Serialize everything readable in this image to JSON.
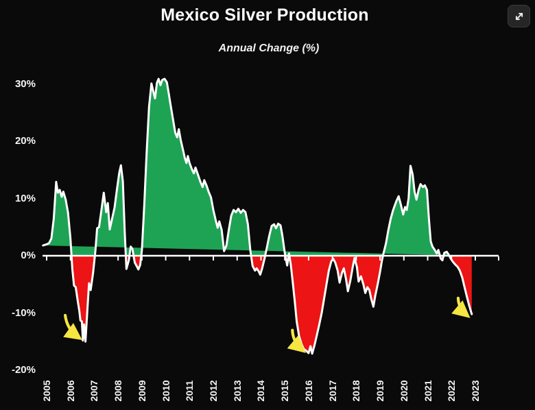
{
  "page": {
    "expand_button": {
      "icon": "expand-diagonal-arrows-icon"
    }
  },
  "chart_data": {
    "type": "area",
    "title": "Mexico Silver Production",
    "subtitle": "Annual Change (%)",
    "xlabel": "",
    "ylabel": "Annual Change (%)",
    "grid": false,
    "legend": "none",
    "background": "#0a0a0a",
    "ylim": [
      -22,
      32.5
    ],
    "xlim": [
      2004.85,
      2023.98
    ],
    "y_ticks": [
      "30%",
      "20%",
      "10%",
      "0%",
      "-10%",
      "-20%"
    ],
    "y_tick_values": [
      30,
      20,
      10,
      0,
      -10,
      -20
    ],
    "x_ticks": [
      "2005",
      "2006",
      "2007",
      "2008",
      "2009",
      "2010",
      "2011",
      "2012",
      "2013",
      "2014",
      "2015",
      "2016",
      "2017",
      "2018",
      "2019",
      "2020",
      "2021",
      "2022",
      "2023"
    ],
    "colors": {
      "positive_fill": "#1ea355",
      "negative_fill": "#ec1414",
      "line": "#ffffff",
      "axis": "#ffffff",
      "arrow": "#f5e642",
      "text": "#f5f5f5"
    },
    "series": [
      {
        "name": "Annual Change (%)",
        "points": [
          [
            2004.85,
            1.8
          ],
          [
            2005.0,
            2.0
          ],
          [
            2005.1,
            2.2
          ],
          [
            2005.2,
            3.0
          ],
          [
            2005.3,
            6.5
          ],
          [
            2005.4,
            12.9
          ],
          [
            2005.47,
            11.0
          ],
          [
            2005.55,
            11.5
          ],
          [
            2005.63,
            10.3
          ],
          [
            2005.7,
            11.2
          ],
          [
            2005.8,
            9.8
          ],
          [
            2005.9,
            7.5
          ],
          [
            2006.0,
            3.0
          ],
          [
            2006.08,
            -2.4
          ],
          [
            2006.15,
            -5.2
          ],
          [
            2006.22,
            -5.5
          ],
          [
            2006.3,
            -7.7
          ],
          [
            2006.37,
            -9.6
          ],
          [
            2006.42,
            -11.3
          ],
          [
            2006.48,
            -11.5
          ],
          [
            2006.52,
            -14.8
          ],
          [
            2006.57,
            -12.0
          ],
          [
            2006.63,
            -15.0
          ],
          [
            2006.7,
            -10.2
          ],
          [
            2006.78,
            -4.8
          ],
          [
            2006.85,
            -6.0
          ],
          [
            2006.95,
            -3.0
          ],
          [
            2007.05,
            1.0
          ],
          [
            2007.12,
            4.8
          ],
          [
            2007.2,
            5.0
          ],
          [
            2007.3,
            8.0
          ],
          [
            2007.4,
            11.0
          ],
          [
            2007.5,
            7.6
          ],
          [
            2007.57,
            9.2
          ],
          [
            2007.65,
            4.6
          ],
          [
            2007.75,
            6.5
          ],
          [
            2007.85,
            8.4
          ],
          [
            2007.95,
            11.5
          ],
          [
            2008.05,
            14.5
          ],
          [
            2008.12,
            15.8
          ],
          [
            2008.2,
            13.0
          ],
          [
            2008.28,
            4.0
          ],
          [
            2008.35,
            -2.3
          ],
          [
            2008.45,
            -0.8
          ],
          [
            2008.53,
            1.6
          ],
          [
            2008.6,
            1.2
          ],
          [
            2008.7,
            -1.2
          ],
          [
            2008.78,
            -1.8
          ],
          [
            2008.85,
            -2.4
          ],
          [
            2008.93,
            -1.6
          ],
          [
            2009.0,
            1.0
          ],
          [
            2009.1,
            9.0
          ],
          [
            2009.2,
            18.0
          ],
          [
            2009.3,
            26.0
          ],
          [
            2009.4,
            30.1
          ],
          [
            2009.48,
            28.7
          ],
          [
            2009.55,
            27.5
          ],
          [
            2009.63,
            30.2
          ],
          [
            2009.7,
            30.9
          ],
          [
            2009.78,
            29.8
          ],
          [
            2009.85,
            30.7
          ],
          [
            2009.95,
            30.9
          ],
          [
            2010.05,
            30.3
          ],
          [
            2010.12,
            28.5
          ],
          [
            2010.2,
            26.5
          ],
          [
            2010.3,
            24.0
          ],
          [
            2010.4,
            21.5
          ],
          [
            2010.48,
            20.7
          ],
          [
            2010.55,
            22.1
          ],
          [
            2010.63,
            20.2
          ],
          [
            2010.72,
            18.6
          ],
          [
            2010.8,
            17.1
          ],
          [
            2010.87,
            16.2
          ],
          [
            2010.93,
            17.4
          ],
          [
            2011.0,
            16.2
          ],
          [
            2011.1,
            15.1
          ],
          [
            2011.18,
            14.4
          ],
          [
            2011.25,
            15.4
          ],
          [
            2011.35,
            14.2
          ],
          [
            2011.45,
            13.0
          ],
          [
            2011.55,
            12.0
          ],
          [
            2011.62,
            13.2
          ],
          [
            2011.72,
            12.2
          ],
          [
            2011.8,
            11.2
          ],
          [
            2011.9,
            10.2
          ],
          [
            2012.0,
            8.0
          ],
          [
            2012.1,
            6.2
          ],
          [
            2012.18,
            4.9
          ],
          [
            2012.25,
            6.0
          ],
          [
            2012.35,
            4.5
          ],
          [
            2012.45,
            0.8
          ],
          [
            2012.55,
            1.8
          ],
          [
            2012.65,
            4.5
          ],
          [
            2012.75,
            7.0
          ],
          [
            2012.85,
            8.0
          ],
          [
            2012.95,
            7.6
          ],
          [
            2013.05,
            8.2
          ],
          [
            2013.15,
            7.5
          ],
          [
            2013.25,
            8.0
          ],
          [
            2013.35,
            7.6
          ],
          [
            2013.45,
            5.5
          ],
          [
            2013.55,
            1.0
          ],
          [
            2013.65,
            -1.8
          ],
          [
            2013.75,
            -2.6
          ],
          [
            2013.82,
            -2.2
          ],
          [
            2013.9,
            -2.7
          ],
          [
            2013.97,
            -3.3
          ],
          [
            2014.05,
            -2.2
          ],
          [
            2014.15,
            -0.5
          ],
          [
            2014.25,
            1.5
          ],
          [
            2014.35,
            3.5
          ],
          [
            2014.45,
            5.2
          ],
          [
            2014.55,
            5.5
          ],
          [
            2014.63,
            4.8
          ],
          [
            2014.72,
            5.6
          ],
          [
            2014.82,
            5.3
          ],
          [
            2014.9,
            3.5
          ],
          [
            2015.0,
            0.5
          ],
          [
            2015.1,
            -1.7
          ],
          [
            2015.18,
            0.4
          ],
          [
            2015.25,
            -1.5
          ],
          [
            2015.33,
            -4.5
          ],
          [
            2015.42,
            -8.0
          ],
          [
            2015.5,
            -11.5
          ],
          [
            2015.6,
            -14.0
          ],
          [
            2015.7,
            -15.4
          ],
          [
            2015.8,
            -16.3
          ],
          [
            2015.9,
            -16.6
          ],
          [
            2016.0,
            -17.0
          ],
          [
            2016.08,
            -15.8
          ],
          [
            2016.15,
            -17.1
          ],
          [
            2016.25,
            -15.6
          ],
          [
            2016.35,
            -13.8
          ],
          [
            2016.45,
            -12.0
          ],
          [
            2016.55,
            -10.0
          ],
          [
            2016.65,
            -7.5
          ],
          [
            2016.75,
            -5.0
          ],
          [
            2016.85,
            -2.6
          ],
          [
            2016.95,
            -1.0
          ],
          [
            2017.03,
            -0.5
          ],
          [
            2017.12,
            -1.2
          ],
          [
            2017.22,
            -2.6
          ],
          [
            2017.3,
            -4.7
          ],
          [
            2017.4,
            -3.0
          ],
          [
            2017.48,
            -2.2
          ],
          [
            2017.57,
            -4.0
          ],
          [
            2017.65,
            -6.2
          ],
          [
            2017.75,
            -4.4
          ],
          [
            2017.85,
            -2.0
          ],
          [
            2017.93,
            -0.4
          ],
          [
            2018.03,
            -2.0
          ],
          [
            2018.1,
            -4.5
          ],
          [
            2018.2,
            -3.6
          ],
          [
            2018.3,
            -5.0
          ],
          [
            2018.38,
            -6.5
          ],
          [
            2018.47,
            -5.5
          ],
          [
            2018.55,
            -6.0
          ],
          [
            2018.63,
            -7.5
          ],
          [
            2018.72,
            -8.9
          ],
          [
            2018.8,
            -7.0
          ],
          [
            2018.9,
            -5.0
          ],
          [
            2019.0,
            -2.8
          ],
          [
            2019.08,
            -0.8
          ],
          [
            2019.15,
            0.5
          ],
          [
            2019.25,
            2.2
          ],
          [
            2019.35,
            4.5
          ],
          [
            2019.45,
            6.5
          ],
          [
            2019.55,
            8.0
          ],
          [
            2019.68,
            9.5
          ],
          [
            2019.78,
            10.4
          ],
          [
            2019.87,
            9.0
          ],
          [
            2019.97,
            7.2
          ],
          [
            2020.05,
            8.5
          ],
          [
            2020.12,
            8.0
          ],
          [
            2020.2,
            10.0
          ],
          [
            2020.28,
            15.7
          ],
          [
            2020.37,
            14.2
          ],
          [
            2020.45,
            11.2
          ],
          [
            2020.53,
            9.8
          ],
          [
            2020.62,
            11.5
          ],
          [
            2020.7,
            12.5
          ],
          [
            2020.8,
            12.0
          ],
          [
            2020.88,
            12.3
          ],
          [
            2020.97,
            11.5
          ],
          [
            2021.05,
            6.5
          ],
          [
            2021.13,
            2.5
          ],
          [
            2021.2,
            1.6
          ],
          [
            2021.3,
            1.0
          ],
          [
            2021.38,
            0.4
          ],
          [
            2021.45,
            1.0
          ],
          [
            2021.55,
            -0.5
          ],
          [
            2021.62,
            -0.8
          ],
          [
            2021.7,
            0.5
          ],
          [
            2021.8,
            0.7
          ],
          [
            2021.88,
            0.2
          ],
          [
            2021.97,
            -0.5
          ],
          [
            2022.05,
            -1.0
          ],
          [
            2022.15,
            -1.5
          ],
          [
            2022.25,
            -1.9
          ],
          [
            2022.35,
            -2.6
          ],
          [
            2022.45,
            -3.8
          ],
          [
            2022.55,
            -5.5
          ],
          [
            2022.65,
            -7.2
          ],
          [
            2022.75,
            -8.8
          ],
          [
            2022.85,
            -10.2
          ]
        ]
      }
    ],
    "annotations": [
      {
        "type": "arrow",
        "from": [
          2005.78,
          -10.4
        ],
        "to": [
          2006.32,
          -14.2
        ]
      },
      {
        "type": "arrow",
        "from": [
          2015.32,
          -13.0
        ],
        "to": [
          2015.72,
          -16.4
        ]
      },
      {
        "type": "arrow",
        "from": [
          2022.28,
          -7.4
        ],
        "to": [
          2022.62,
          -10.3
        ]
      }
    ]
  }
}
